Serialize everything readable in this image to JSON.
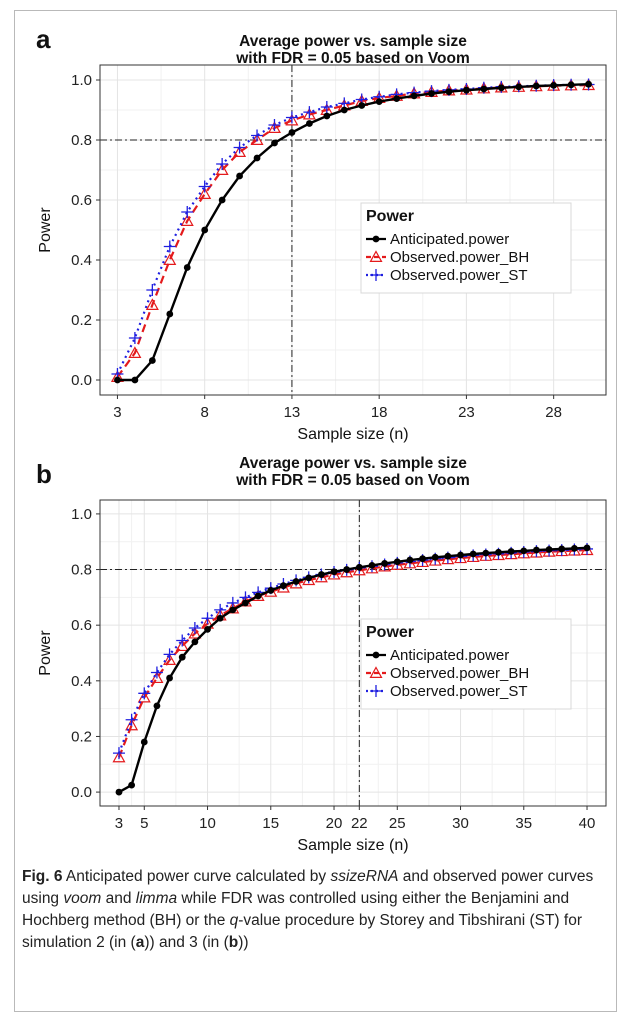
{
  "chart_data": [
    {
      "type": "line",
      "panel_label": "a",
      "title_line1": "Average power vs. sample size",
      "title_line2": "with FDR = 0.05 based on Voom",
      "xlabel": "Sample size (n)",
      "ylabel": "Power",
      "xlim": [
        2,
        31
      ],
      "ylim": [
        -0.05,
        1.05
      ],
      "xticks": [
        3,
        8,
        13,
        18,
        23,
        28
      ],
      "yticks": [
        0.0,
        0.2,
        0.4,
        0.6,
        0.8,
        1.0
      ],
      "ytick_labels": [
        "0.0",
        "0.2",
        "0.4",
        "0.6",
        "0.8",
        "1.0"
      ],
      "reference_lines": {
        "x": 13,
        "y": 0.8
      },
      "grid": true,
      "legend": {
        "title": "Power",
        "placement": "right-middle"
      },
      "x": [
        3,
        4,
        5,
        6,
        7,
        8,
        9,
        10,
        11,
        12,
        13,
        14,
        15,
        16,
        17,
        18,
        19,
        20,
        21,
        22,
        23,
        24,
        25,
        26,
        27,
        28,
        29,
        30
      ],
      "series": [
        {
          "name": "Anticipated.power",
          "color": "#000000",
          "marker": "dot",
          "values": [
            0.0,
            0.0,
            0.065,
            0.22,
            0.375,
            0.5,
            0.6,
            0.68,
            0.74,
            0.79,
            0.825,
            0.855,
            0.88,
            0.9,
            0.915,
            0.928,
            0.938,
            0.947,
            0.955,
            0.961,
            0.966,
            0.97,
            0.974,
            0.977,
            0.98,
            0.982,
            0.984,
            0.986
          ]
        },
        {
          "name": "Observed.power_BH",
          "color": "#e41a1c",
          "marker": "triangle",
          "values": [
            0.01,
            0.09,
            0.25,
            0.4,
            0.53,
            0.62,
            0.7,
            0.76,
            0.8,
            0.84,
            0.865,
            0.885,
            0.9,
            0.915,
            0.93,
            0.94,
            0.947,
            0.955,
            0.96,
            0.965,
            0.968,
            0.972,
            0.975,
            0.977,
            0.979,
            0.981,
            0.982,
            0.983
          ]
        },
        {
          "name": "Observed.power_ST",
          "color": "#1f1fe0",
          "marker": "plus",
          "values": [
            0.02,
            0.14,
            0.3,
            0.445,
            0.56,
            0.645,
            0.72,
            0.775,
            0.815,
            0.85,
            0.875,
            0.893,
            0.91,
            0.922,
            0.935,
            0.944,
            0.952,
            0.958,
            0.963,
            0.967,
            0.97,
            0.974,
            0.977,
            0.979,
            0.981,
            0.983,
            0.984,
            0.985
          ]
        }
      ]
    },
    {
      "type": "line",
      "panel_label": "b",
      "title_line1": "Average power vs. sample size",
      "title_line2": "with FDR = 0.05 based on Voom",
      "xlabel": "Sample size (n)",
      "ylabel": "Power",
      "xlim": [
        1.5,
        41.5
      ],
      "ylim": [
        -0.05,
        1.05
      ],
      "xticks": [
        3,
        5,
        10,
        15,
        20,
        22,
        25,
        30,
        35,
        40
      ],
      "yticks": [
        0.0,
        0.2,
        0.4,
        0.6,
        0.8,
        1.0
      ],
      "ytick_labels": [
        "0.0",
        "0.2",
        "0.4",
        "0.6",
        "0.8",
        "1.0"
      ],
      "reference_lines": {
        "x": 22,
        "y": 0.8
      },
      "grid": true,
      "legend": {
        "title": "Power",
        "placement": "right-middle"
      },
      "x": [
        3,
        4,
        5,
        6,
        7,
        8,
        9,
        10,
        11,
        12,
        13,
        14,
        15,
        16,
        17,
        18,
        19,
        20,
        21,
        22,
        23,
        24,
        25,
        26,
        27,
        28,
        29,
        30,
        31,
        32,
        33,
        34,
        35,
        36,
        37,
        38,
        39,
        40
      ],
      "series": [
        {
          "name": "Anticipated.power",
          "color": "#000000",
          "marker": "dot",
          "values": [
            0.0,
            0.025,
            0.18,
            0.31,
            0.41,
            0.485,
            0.54,
            0.585,
            0.625,
            0.655,
            0.68,
            0.705,
            0.725,
            0.742,
            0.757,
            0.77,
            0.782,
            0.792,
            0.8,
            0.808,
            0.815,
            0.822,
            0.828,
            0.834,
            0.839,
            0.844,
            0.848,
            0.852,
            0.856,
            0.859,
            0.862,
            0.865,
            0.867,
            0.87,
            0.872,
            0.874,
            0.876,
            0.878
          ]
        },
        {
          "name": "Observed.power_BH",
          "color": "#e41a1c",
          "marker": "triangle",
          "values": [
            0.125,
            0.24,
            0.34,
            0.41,
            0.475,
            0.525,
            0.57,
            0.605,
            0.635,
            0.66,
            0.685,
            0.705,
            0.72,
            0.735,
            0.75,
            0.762,
            0.772,
            0.782,
            0.79,
            0.797,
            0.804,
            0.811,
            0.817,
            0.822,
            0.827,
            0.832,
            0.837,
            0.841,
            0.845,
            0.849,
            0.852,
            0.855,
            0.858,
            0.861,
            0.864,
            0.866,
            0.868,
            0.87
          ]
        },
        {
          "name": "Observed.power_ST",
          "color": "#1f1fe0",
          "marker": "plus",
          "values": [
            0.14,
            0.26,
            0.355,
            0.43,
            0.495,
            0.545,
            0.59,
            0.625,
            0.655,
            0.68,
            0.7,
            0.718,
            0.733,
            0.748,
            0.761,
            0.772,
            0.782,
            0.791,
            0.799,
            0.806,
            0.812,
            0.818,
            0.824,
            0.829,
            0.834,
            0.839,
            0.843,
            0.847,
            0.851,
            0.854,
            0.857,
            0.86,
            0.863,
            0.866,
            0.868,
            0.87,
            0.872,
            0.874
          ]
        }
      ]
    }
  ],
  "caption": {
    "label": "Fig. 6",
    "t1": " Anticipated power curve calculated by ",
    "i1": "ssizeRNA",
    "t2": " and observed power curves using ",
    "i2": "voom",
    "t3": " and ",
    "i3": "limma",
    "t4": " while FDR was controlled using either the Benjamini and Hochberg method (BH) or the ",
    "i4": "q",
    "t5": "-value procedure by Storey and Tibshirani (ST) for simulation 2 (in (",
    "b1": "a",
    "t6": ")) and 3 (in (",
    "b2": "b",
    "t7": "))"
  }
}
